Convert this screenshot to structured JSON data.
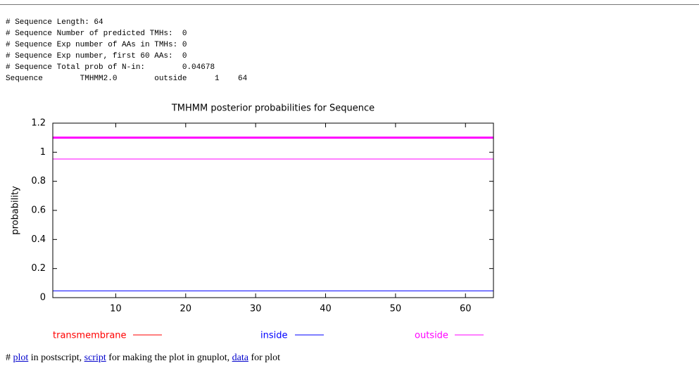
{
  "header_lines": [
    "# Sequence Length: 64",
    "# Sequence Number of predicted TMHs:  0",
    "# Sequence Exp number of AAs in TMHs: 0",
    "# Sequence Exp number, first 60 AAs:  0",
    "# Sequence Total prob of N-in:        0.04678",
    "Sequence        TMHMM2.0        outside      1    64"
  ],
  "chart_data": {
    "type": "line",
    "title": "TMHMM posterior probabilities for Sequence",
    "y_label": "probability",
    "x": [
      1,
      2,
      3,
      4,
      5,
      6,
      7,
      8,
      9,
      10,
      11,
      12,
      13,
      14,
      15,
      16,
      17,
      18,
      19,
      20,
      21,
      22,
      23,
      24,
      25,
      26,
      27,
      28,
      29,
      30,
      31,
      32,
      33,
      34,
      35,
      36,
      37,
      38,
      39,
      40,
      41,
      42,
      43,
      44,
      45,
      46,
      47,
      48,
      49,
      50,
      51,
      52,
      53,
      54,
      55,
      56,
      57,
      58,
      59,
      60,
      61,
      62,
      63,
      64
    ],
    "xlim": [
      1,
      64
    ],
    "xticks": [
      10,
      20,
      30,
      40,
      50,
      60
    ],
    "ylim": [
      0,
      1.2
    ],
    "yticks": [
      0,
      0.2,
      0.4,
      0.6,
      0.8,
      1,
      1.2
    ],
    "series": [
      {
        "name": "transmembrane",
        "color": "#ff0000",
        "values": [
          0,
          0,
          0,
          0,
          0,
          0,
          0,
          0,
          0,
          0,
          0,
          0,
          0,
          0,
          0,
          0,
          0,
          0,
          0,
          0,
          0,
          0,
          0,
          0,
          0,
          0,
          0,
          0,
          0,
          0,
          0,
          0,
          0,
          0,
          0,
          0,
          0,
          0,
          0,
          0,
          0,
          0,
          0,
          0,
          0,
          0,
          0,
          0,
          0,
          0,
          0,
          0,
          0,
          0,
          0,
          0,
          0,
          0,
          0,
          0,
          0,
          0,
          0,
          0
        ]
      },
      {
        "name": "inside",
        "color": "#0000ff",
        "values": [
          0.04678,
          0.04678,
          0.04678,
          0.04678,
          0.04678,
          0.04678,
          0.04678,
          0.04678,
          0.04678,
          0.04678,
          0.04678,
          0.04678,
          0.04678,
          0.04678,
          0.04678,
          0.04678,
          0.04678,
          0.04678,
          0.04678,
          0.04678,
          0.04678,
          0.04678,
          0.04678,
          0.04678,
          0.04678,
          0.04678,
          0.04678,
          0.04678,
          0.04678,
          0.04678,
          0.04678,
          0.04678,
          0.04678,
          0.04678,
          0.04678,
          0.04678,
          0.04678,
          0.04678,
          0.04678,
          0.04678,
          0.04678,
          0.04678,
          0.04678,
          0.04678,
          0.04678,
          0.04678,
          0.04678,
          0.04678,
          0.04678,
          0.04678,
          0.04678,
          0.04678,
          0.04678,
          0.04678,
          0.04678,
          0.04678,
          0.04678,
          0.04678,
          0.04678,
          0.04678,
          0.04678,
          0.04678,
          0.04678,
          0.04678
        ]
      },
      {
        "name": "outside",
        "color": "#ff00ff",
        "values": [
          0.95322,
          0.95322,
          0.95322,
          0.95322,
          0.95322,
          0.95322,
          0.95322,
          0.95322,
          0.95322,
          0.95322,
          0.95322,
          0.95322,
          0.95322,
          0.95322,
          0.95322,
          0.95322,
          0.95322,
          0.95322,
          0.95322,
          0.95322,
          0.95322,
          0.95322,
          0.95322,
          0.95322,
          0.95322,
          0.95322,
          0.95322,
          0.95322,
          0.95322,
          0.95322,
          0.95322,
          0.95322,
          0.95322,
          0.95322,
          0.95322,
          0.95322,
          0.95322,
          0.95322,
          0.95322,
          0.95322,
          0.95322,
          0.95322,
          0.95322,
          0.95322,
          0.95322,
          0.95322,
          0.95322,
          0.95322,
          0.95322,
          0.95322,
          0.95322,
          0.95322,
          0.95322,
          0.95322,
          0.95322,
          0.95322,
          0.95322,
          0.95322,
          0.95322,
          0.95322,
          0.95322,
          0.95322,
          0.95322,
          0.95322
        ]
      }
    ],
    "regions": [
      {
        "start": 1,
        "end": 64,
        "y": 1.1,
        "color": "#ff00ff"
      }
    ]
  },
  "footer": [
    {
      "text": "#"
    },
    {
      "text": "plot",
      "link": true
    },
    {
      "text": "in postscript,"
    },
    {
      "text": "script",
      "link": true
    },
    {
      "text": "for making the plot in gnuplot,"
    },
    {
      "text": "data",
      "link": true
    },
    {
      "text": "for plot"
    }
  ]
}
